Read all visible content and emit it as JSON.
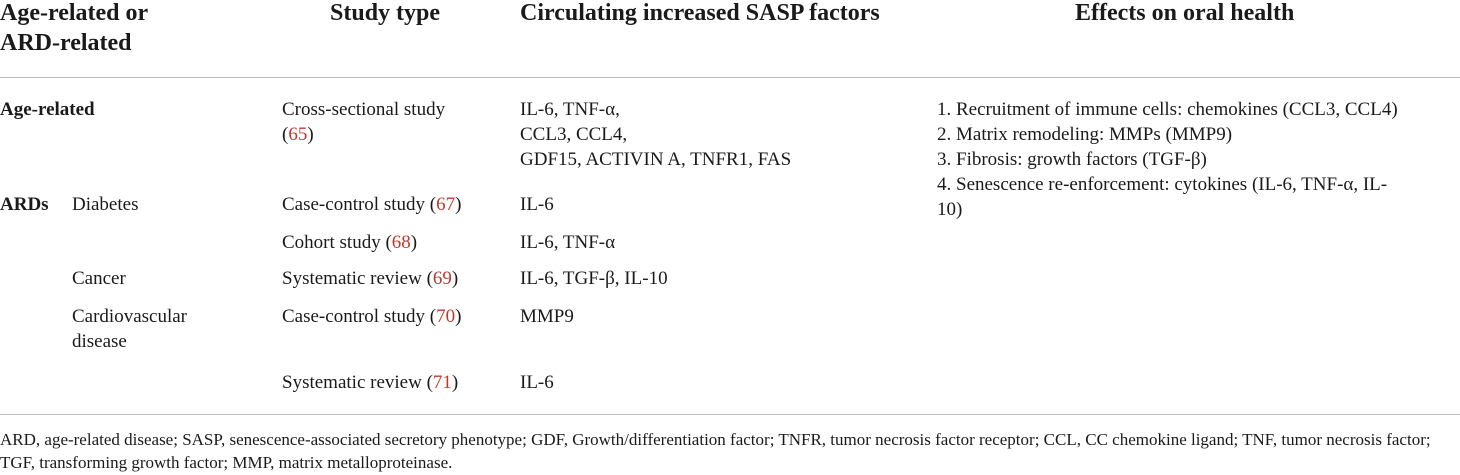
{
  "header": {
    "col1_line1": "Age-related or",
    "col1_line2": "ARD-related",
    "col2": "Study type",
    "col3": "Circulating increased SASP factors",
    "col4": "Effects on oral health"
  },
  "age_related": {
    "label": "Age-related",
    "study_line1": "Cross-sectional study",
    "study_ref_open": "(",
    "study_ref": "65",
    "study_ref_close": ")",
    "factors": [
      "IL-6, TNF-α,",
      "CCL3, CCL4,",
      "GDF15, ACTIVIN A, TNFR1, FAS"
    ]
  },
  "ards": {
    "label": "ARDs",
    "rows": [
      {
        "disease": "Diabetes",
        "study": "Case-control study (",
        "ref": "67",
        "close": ")",
        "factors": "IL-6"
      },
      {
        "disease": "",
        "study": "Cohort study (",
        "ref": "68",
        "close": ")",
        "factors": "IL-6, TNF-α"
      },
      {
        "disease": "Cancer",
        "study": "Systematic review (",
        "ref": "69",
        "close": ")",
        "factors": "IL-6, TGF-β, IL-10"
      },
      {
        "disease_line1": "Cardiovascular",
        "disease_line2": "disease",
        "study": "Case-control study (",
        "ref": "70",
        "close": ")",
        "factors": "MMP9"
      },
      {
        "disease": "",
        "study": "Systematic review (",
        "ref": "71",
        "close": ")",
        "factors": "IL-6"
      }
    ]
  },
  "effects": [
    "1. Recruitment of immune cells: chemokines (CCL3, CCL4)",
    "2. Matrix remodeling: MMPs (MMP9)",
    "3. Fibrosis: growth factors (TGF-β)",
    "4. Senescence re-enforcement: cytokines (IL-6, TNF-α, IL-",
    "10)"
  ],
  "footnote": "ARD, age-related disease; SASP, senescence-associated secretory phenotype; GDF, Growth/differentiation factor; TNFR, tumor necrosis factor receptor; CCL, CC chemokine ligand; TNF, tumor necrosis factor; TGF, transforming growth factor; MMP, matrix metalloproteinase."
}
